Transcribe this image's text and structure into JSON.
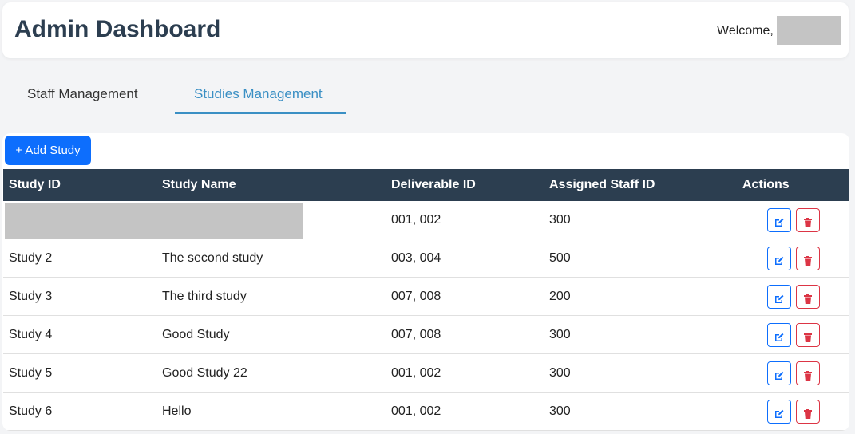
{
  "header": {
    "title": "Admin Dashboard",
    "welcome": "Welcome,"
  },
  "tabs": [
    "Staff Management",
    "Studies Management"
  ],
  "active_tab": 1,
  "add_button": "+ Add Study",
  "table": {
    "columns": [
      "Study ID",
      "Study Name",
      "Deliverable ID",
      "Assigned Staff ID",
      "Actions"
    ],
    "rows": [
      [
        null,
        null,
        "001, 002",
        "300"
      ],
      [
        "Study 2",
        "The second study",
        "003, 004",
        "500"
      ],
      [
        "Study 3",
        "The third study",
        "007, 008",
        "200"
      ],
      [
        "Study 4",
        "Good Study",
        "007, 008",
        "300"
      ],
      [
        "Study 5",
        "Good Study 22",
        "001, 002",
        "300"
      ],
      [
        "Study 6",
        "Hello",
        "001, 002",
        "300"
      ]
    ]
  }
}
